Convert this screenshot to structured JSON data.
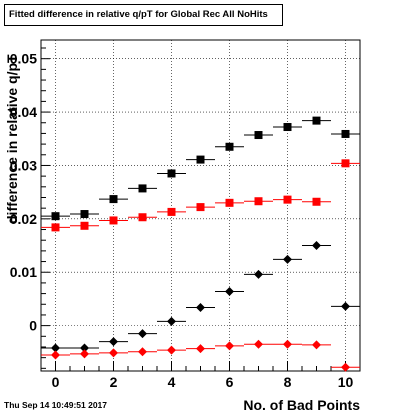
{
  "header": {
    "title": "Fitted difference in relative q/pT for Global Rec All NoHits",
    "timestamp": "Thu Sep 14 10:49:51 2017"
  },
  "chart_data": {
    "type": "scatter",
    "title": "Fitted difference in relative q/pT for Global Rec All NoHits",
    "xlabel": "No. of Bad Points",
    "ylabel": "difference in relative q/pT",
    "xlim": [
      -0.5,
      10.5
    ],
    "ylim": [
      -0.0085,
      0.0535
    ],
    "x_ticks": [
      0,
      2,
      4,
      6,
      8,
      10
    ],
    "x_tick_labels": [
      "0",
      "2",
      "4",
      "6",
      "8",
      "10"
    ],
    "y_ticks": [
      0,
      0.01,
      0.02,
      0.03,
      0.04,
      0.05
    ],
    "y_tick_labels": [
      "0",
      "0.01",
      "0.02",
      "0.03",
      "0.04",
      "0.05"
    ],
    "x_error": 0.5,
    "grid": true,
    "series": [
      {
        "marker": "square",
        "color": "#000000",
        "x": [
          0,
          1,
          2,
          3,
          4,
          5,
          6,
          7,
          8,
          9,
          10
        ],
        "y": [
          0.0205,
          0.0209,
          0.0237,
          0.0257,
          0.0285,
          0.0311,
          0.0335,
          0.0357,
          0.0372,
          0.0384,
          0.0359
        ]
      },
      {
        "marker": "square",
        "color": "#ff0000",
        "x": [
          0,
          1,
          2,
          3,
          4,
          5,
          6,
          7,
          8,
          9,
          10
        ],
        "y": [
          0.0184,
          0.0187,
          0.0197,
          0.0203,
          0.0213,
          0.0222,
          0.023,
          0.0233,
          0.0236,
          0.0232,
          0.0304
        ]
      },
      {
        "marker": "diamond",
        "color": "#000000",
        "x": [
          0,
          1,
          2,
          3,
          4,
          5,
          6,
          7,
          8,
          9,
          10
        ],
        "y": [
          -0.0042,
          -0.0042,
          -0.003,
          -0.0015,
          0.0008,
          0.0034,
          0.0064,
          0.0096,
          0.0124,
          0.015,
          0.0036
        ]
      },
      {
        "marker": "diamond",
        "color": "#ff0000",
        "x": [
          0,
          1,
          2,
          3,
          4,
          5,
          6,
          7,
          8,
          9,
          10
        ],
        "y": [
          -0.0055,
          -0.0053,
          -0.0051,
          -0.0049,
          -0.0046,
          -0.0043,
          -0.0038,
          -0.0035,
          -0.0035,
          -0.0036,
          -0.0078
        ]
      }
    ]
  }
}
